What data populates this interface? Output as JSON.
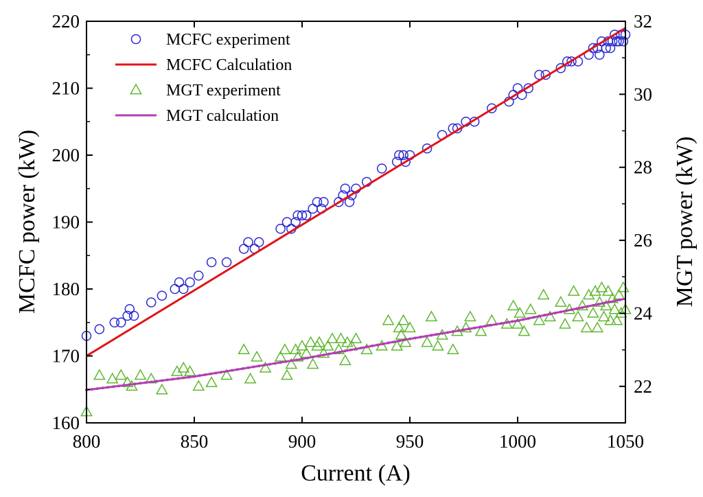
{
  "chart_data": {
    "type": "scatter",
    "title": "",
    "xlabel": "Current (A)",
    "ylabel": "MCFC power (kW)",
    "y2label": "MGT power (kW)",
    "xlim": [
      800,
      1050
    ],
    "ylim": [
      160,
      220
    ],
    "y2lim": [
      21,
      32
    ],
    "xticks": [
      800,
      850,
      900,
      950,
      1000,
      1050
    ],
    "yticks": [
      160,
      170,
      180,
      190,
      200,
      210,
      220
    ],
    "y2ticks": [
      22,
      24,
      26,
      28,
      30,
      32
    ],
    "legend_position": "top-left",
    "grid": false,
    "series": [
      {
        "name": "MCFC experiment",
        "kind": "scatter",
        "marker": "circle",
        "axis": "left",
        "color": "#2a2ad0",
        "points": [
          [
            800,
            173
          ],
          [
            806,
            174
          ],
          [
            813,
            175
          ],
          [
            816,
            175
          ],
          [
            819,
            176
          ],
          [
            820,
            177
          ],
          [
            822,
            176
          ],
          [
            830,
            178
          ],
          [
            835,
            179
          ],
          [
            841,
            180
          ],
          [
            843,
            181
          ],
          [
            845,
            180
          ],
          [
            848,
            181
          ],
          [
            852,
            182
          ],
          [
            858,
            184
          ],
          [
            865,
            184
          ],
          [
            873,
            186
          ],
          [
            875,
            187
          ],
          [
            878,
            186
          ],
          [
            880,
            187
          ],
          [
            890,
            189
          ],
          [
            893,
            190
          ],
          [
            895,
            189
          ],
          [
            897,
            190
          ],
          [
            898,
            191
          ],
          [
            900,
            191
          ],
          [
            902,
            191
          ],
          [
            905,
            192
          ],
          [
            907,
            193
          ],
          [
            909,
            192
          ],
          [
            910,
            193
          ],
          [
            917,
            193
          ],
          [
            919,
            194
          ],
          [
            920,
            195
          ],
          [
            922,
            193
          ],
          [
            923,
            194
          ],
          [
            925,
            195
          ],
          [
            930,
            196
          ],
          [
            937,
            198
          ],
          [
            944,
            199
          ],
          [
            945,
            200
          ],
          [
            947,
            200
          ],
          [
            948,
            199
          ],
          [
            950,
            200
          ],
          [
            958,
            201
          ],
          [
            965,
            203
          ],
          [
            970,
            204
          ],
          [
            972,
            204
          ],
          [
            976,
            205
          ],
          [
            980,
            205
          ],
          [
            988,
            207
          ],
          [
            996,
            208
          ],
          [
            998,
            209
          ],
          [
            1000,
            210
          ],
          [
            1002,
            209
          ],
          [
            1005,
            210
          ],
          [
            1010,
            212
          ],
          [
            1013,
            212
          ],
          [
            1020,
            213
          ],
          [
            1023,
            214
          ],
          [
            1025,
            214
          ],
          [
            1028,
            214
          ],
          [
            1033,
            215
          ],
          [
            1035,
            216
          ],
          [
            1037,
            216
          ],
          [
            1038,
            215
          ],
          [
            1039,
            217
          ],
          [
            1041,
            216
          ],
          [
            1042,
            217
          ],
          [
            1043,
            216
          ],
          [
            1044,
            217
          ],
          [
            1045,
            218
          ],
          [
            1046,
            217
          ],
          [
            1047,
            217
          ],
          [
            1048,
            218
          ],
          [
            1049,
            217
          ],
          [
            1050,
            218
          ]
        ]
      },
      {
        "name": "MCFC Calculation",
        "kind": "line",
        "axis": "left",
        "color": "#e0141c",
        "x": [
          800,
          1050
        ],
        "y": [
          170,
          219
        ]
      },
      {
        "name": "MGT experiment",
        "kind": "scatter",
        "marker": "triangle",
        "axis": "right",
        "color": "#5fb830",
        "points": [
          [
            800,
            21.3
          ],
          [
            806,
            22.3
          ],
          [
            812,
            22.2
          ],
          [
            816,
            22.3
          ],
          [
            819,
            22.1
          ],
          [
            821,
            22.0
          ],
          [
            825,
            22.3
          ],
          [
            830,
            22.2
          ],
          [
            835,
            21.9
          ],
          [
            842,
            22.4
          ],
          [
            845,
            22.5
          ],
          [
            848,
            22.4
          ],
          [
            852,
            22.0
          ],
          [
            858,
            22.1
          ],
          [
            865,
            22.3
          ],
          [
            873,
            23.0
          ],
          [
            876,
            22.2
          ],
          [
            879,
            22.8
          ],
          [
            883,
            22.5
          ],
          [
            890,
            22.8
          ],
          [
            892,
            23.0
          ],
          [
            893,
            22.3
          ],
          [
            895,
            22.6
          ],
          [
            897,
            23.0
          ],
          [
            898,
            22.8
          ],
          [
            900,
            23.1
          ],
          [
            902,
            22.9
          ],
          [
            904,
            23.2
          ],
          [
            905,
            22.6
          ],
          [
            907,
            23.1
          ],
          [
            908,
            23.2
          ],
          [
            910,
            22.9
          ],
          [
            912,
            23.1
          ],
          [
            914,
            23.3
          ],
          [
            917,
            23.0
          ],
          [
            918,
            23.3
          ],
          [
            920,
            22.7
          ],
          [
            921,
            23.2
          ],
          [
            923,
            23.1
          ],
          [
            925,
            23.3
          ],
          [
            930,
            23.0
          ],
          [
            937,
            23.1
          ],
          [
            940,
            23.8
          ],
          [
            944,
            23.1
          ],
          [
            945,
            23.6
          ],
          [
            946,
            23.4
          ],
          [
            947,
            23.8
          ],
          [
            948,
            23.2
          ],
          [
            950,
            23.6
          ],
          [
            958,
            23.2
          ],
          [
            960,
            23.9
          ],
          [
            963,
            23.1
          ],
          [
            965,
            23.4
          ],
          [
            970,
            23.0
          ],
          [
            972,
            23.5
          ],
          [
            976,
            23.6
          ],
          [
            978,
            23.9
          ],
          [
            983,
            23.5
          ],
          [
            988,
            23.8
          ],
          [
            995,
            23.7
          ],
          [
            998,
            24.2
          ],
          [
            1000,
            23.7
          ],
          [
            1001,
            24.0
          ],
          [
            1003,
            23.5
          ],
          [
            1006,
            24.1
          ],
          [
            1010,
            23.8
          ],
          [
            1012,
            24.5
          ],
          [
            1015,
            23.9
          ],
          [
            1020,
            24.3
          ],
          [
            1022,
            23.7
          ],
          [
            1024,
            24.1
          ],
          [
            1026,
            24.6
          ],
          [
            1028,
            23.9
          ],
          [
            1030,
            24.2
          ],
          [
            1032,
            23.6
          ],
          [
            1033,
            24.5
          ],
          [
            1035,
            24.0
          ],
          [
            1036,
            24.6
          ],
          [
            1037,
            23.6
          ],
          [
            1038,
            24.3
          ],
          [
            1039,
            24.7
          ],
          [
            1040,
            23.9
          ],
          [
            1041,
            24.2
          ],
          [
            1042,
            24.6
          ],
          [
            1043,
            23.8
          ],
          [
            1044,
            24.4
          ],
          [
            1045,
            24.1
          ],
          [
            1046,
            23.8
          ],
          [
            1047,
            24.5
          ],
          [
            1048,
            24.0
          ],
          [
            1049,
            24.7
          ],
          [
            1050,
            24.1
          ]
        ]
      },
      {
        "name": "MGT calculation",
        "kind": "line",
        "axis": "right",
        "color": "#b040b0",
        "x": [
          800,
          850,
          900,
          950,
          1000,
          1050
        ],
        "y": [
          21.9,
          22.27,
          22.75,
          23.3,
          23.8,
          24.4
        ]
      }
    ]
  }
}
